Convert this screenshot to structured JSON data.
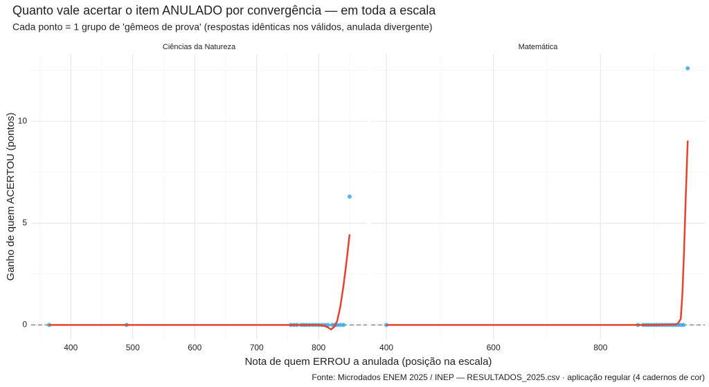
{
  "title": "Quanto vale acertar o item ANULADO por convergência — em toda a escala",
  "subtitle": "Cada ponto = 1 grupo de 'gêmeos de prova' (respostas idênticas nos válidos, anulada divergente)",
  "x_label": "Nota de quem ERROU a anulada (posição na escala)",
  "y_label": "Ganho de quem ACERTOU (pontos)",
  "caption": "Fonte: Microdados ENEM 2025 / INEP — RESULTADOS_2025.csv · aplicação regular (4 cadernos de cor)",
  "chart_data": [
    {
      "type": "scatter",
      "title": "Ciências da Natureza",
      "x": [
        365,
        490,
        755,
        760,
        765,
        772,
        776,
        780,
        785,
        790,
        795,
        800,
        805,
        810,
        815,
        822,
        826,
        830,
        835,
        840,
        850
      ],
      "values": [
        0,
        0,
        0,
        0,
        0,
        0,
        0,
        0,
        0,
        0,
        0,
        0,
        0,
        0,
        0,
        0,
        0,
        0,
        0,
        0,
        6.3
      ],
      "color": "#3aa8e6",
      "trend_x": [
        365,
        500,
        600,
        700,
        800,
        810,
        815,
        820,
        825,
        830,
        835,
        840,
        845,
        850
      ],
      "trend_values": [
        0,
        0,
        0,
        0,
        0,
        -0.05,
        -0.12,
        -0.22,
        -0.1,
        0.2,
        0.9,
        1.9,
        3.1,
        4.45
      ],
      "trend_color": "#e8412c",
      "xlim": [
        336,
        878
      ],
      "xticks": [
        400,
        500,
        600,
        700,
        800
      ],
      "x_minor_grid": [
        350,
        450,
        550,
        650,
        750,
        850
      ],
      "ylim": [
        -0.7,
        13.3
      ],
      "yticks": [
        0,
        5,
        10
      ],
      "y_minor_grid": [
        2.5,
        7.5,
        12.5
      ],
      "hline": 0,
      "grid": true
    },
    {
      "type": "scatter",
      "title": "Matemática",
      "x": [
        400,
        870,
        880,
        885,
        890,
        895,
        900,
        905,
        910,
        915,
        920,
        925,
        930,
        935,
        940,
        945,
        950,
        955,
        963
      ],
      "values": [
        0,
        0,
        0,
        0,
        0,
        0,
        0,
        0,
        0,
        0,
        0,
        0,
        0,
        0,
        0,
        0,
        0,
        0,
        12.6
      ],
      "color": "#3aa8e6",
      "trend_x": [
        400,
        600,
        800,
        900,
        940,
        945,
        950,
        953,
        956,
        959,
        963
      ],
      "trend_values": [
        0,
        0,
        0,
        0,
        0.02,
        0.08,
        0.3,
        1.5,
        3.5,
        6,
        9.05
      ],
      "trend_color": "#e8412c",
      "xlim": [
        371.5,
        995
      ],
      "xticks": [
        400,
        600,
        800
      ],
      "x_minor_grid": [
        500,
        700,
        900
      ],
      "ylim": [
        -0.7,
        13.3
      ],
      "yticks": [
        0,
        5,
        10
      ],
      "y_minor_grid": [
        2.5,
        7.5,
        12.5
      ],
      "hline": 0,
      "grid": true
    }
  ]
}
